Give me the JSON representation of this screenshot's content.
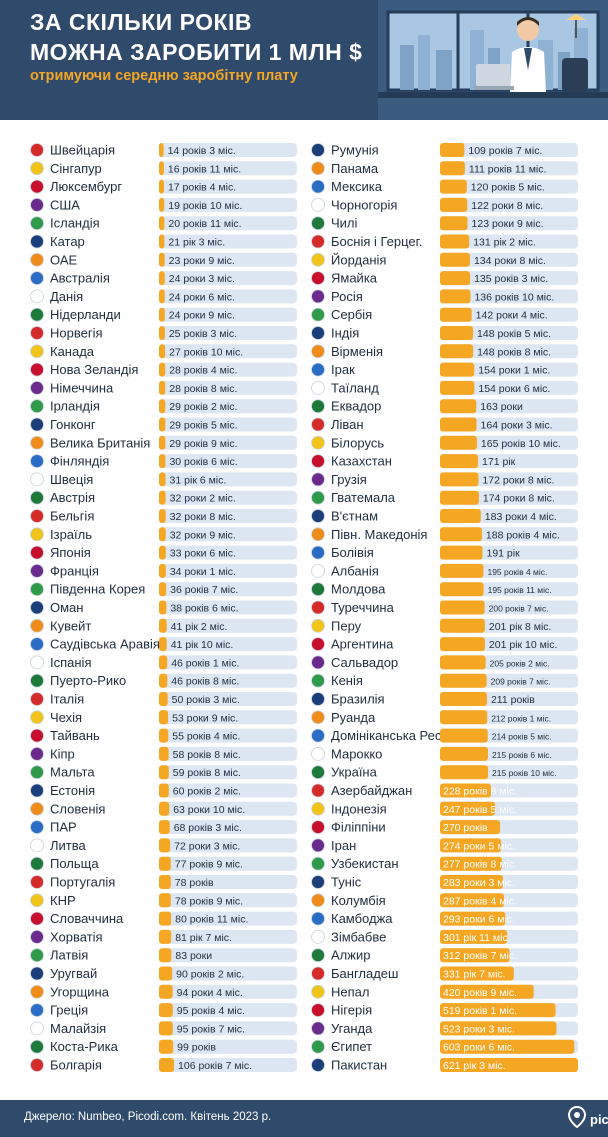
{
  "header": {
    "title_line1": "ЗА СКІЛЬКИ РОКІВ",
    "title_line2": "МОЖНА ЗАРОБИТИ 1 МЛН $",
    "subtitle": "отримуючи середню заробітну плату"
  },
  "footer": {
    "source": "Джерело: Numbeo, Picodi.com. Квітень 2023 р.",
    "logo": "picodi"
  },
  "colors": {
    "header_bg": "#2f4a6b",
    "accent": "#f5a623",
    "bar_track": "#dce7f3",
    "bar_fill": "#f5a623"
  },
  "chart_data": {
    "type": "bar",
    "title": "ЗА СКІЛЬКИ РОКІВ МОЖНА ЗАРОБИТИ 1 МЛН $",
    "subtitle": "отримуючи середню заробітну плату",
    "value_unit": "years",
    "xlim": [
      0,
      650
    ],
    "columns": [
      {
        "categories": [
          "Швейцарія",
          "Сінгапур",
          "Люксембург",
          "США",
          "Ісландія",
          "Катар",
          "ОАЕ",
          "Австралія",
          "Данія",
          "Нідерланди",
          "Норвегія",
          "Канада",
          "Нова Зеландія",
          "Німеччина",
          "Ірландія",
          "Гонконг",
          "Велика Британія",
          "Фінляндія",
          "Швеція",
          "Австрія",
          "Бельгія",
          "Ізраїль",
          "Японія",
          "Франція",
          "Південна Корея",
          "Оман",
          "Кувейт",
          "Саудівська Аравія",
          "Іспанія",
          "Пуерто-Рико",
          "Італія",
          "Чехія",
          "Тайвань",
          "Кіпр",
          "Мальта",
          "Естонія",
          "Словенія",
          "ПАР",
          "Литва",
          "Польща",
          "Португалія",
          "КНР",
          "Словаччина",
          "Хорватія",
          "Латвія",
          "Уругвай",
          "Угорщина",
          "Греція",
          "Малайзія",
          "Коста-Рика",
          "Болгарія"
        ],
        "values": [
          14.25,
          16.92,
          17.33,
          19.83,
          20.92,
          21.25,
          23.75,
          24.25,
          24.5,
          24.75,
          25.25,
          27.83,
          28.33,
          28.67,
          29.17,
          29.42,
          29.75,
          30.5,
          31.5,
          32.17,
          32.67,
          32.75,
          33.5,
          34.08,
          36.58,
          38.5,
          41.17,
          41.83,
          46.08,
          46.67,
          50.25,
          53.75,
          55.33,
          58.67,
          59.67,
          60.17,
          63.83,
          68.25,
          72.25,
          77.75,
          78.0,
          78.75,
          80.92,
          81.58,
          83.0,
          90.17,
          94.33,
          95.33,
          95.58,
          99.0,
          106.58
        ],
        "labels": [
          "14 років 3 міс.",
          "16 років 11 міс.",
          "17 років 4 міс.",
          "19 років 10 міс.",
          "20 років 11 міс.",
          "21 рік 3 міс.",
          "23 роки 9 міс.",
          "24 роки 3 міс.",
          "24 роки 6 міс.",
          "24 роки 9 міс.",
          "25 років 3 міс.",
          "27 років 10 міс.",
          "28 років 4 міс.",
          "28 років 8 міс.",
          "29 років 2 міс.",
          "29 років 5 міс.",
          "29 років 9 міс.",
          "30 років 6 міс.",
          "31 рік 6 міс.",
          "32 роки 2 міс.",
          "32 роки 8 міс.",
          "32 роки 9 міс.",
          "33 роки 6 міс.",
          "34 роки 1 міс.",
          "36 років 7 міс.",
          "38 років 6 міс.",
          "41 рік 2 міс.",
          "41 рік 10 міс.",
          "46 років 1 міс.",
          "46 років 8 міс.",
          "50 років 3 міс.",
          "53 роки 9 міс.",
          "55 років 4 міс.",
          "58 років 8 міс.",
          "59 років 8 міс.",
          "60 років 2 міс.",
          "63 роки 10 міс.",
          "68 років 3 міс.",
          "72 роки 3 міс.",
          "77 років 9 міс.",
          "78 років",
          "78 років 9 міс.",
          "80 років 11 міс.",
          "81 рік 7 міс.",
          "83 роки",
          "90 років 2 міс.",
          "94 роки 4 міс.",
          "95 років 4 міс.",
          "95 років 7 міс.",
          "99 років",
          "106 років 7 міс."
        ]
      },
      {
        "categories": [
          "Румунія",
          "Панама",
          "Мексика",
          "Чорногорія",
          "Чилі",
          "Боснія і Герцег.",
          "Йорданія",
          "Ямайка",
          "Росія",
          "Сербія",
          "Індія",
          "Вірменія",
          "Ірак",
          "Таїланд",
          "Еквадор",
          "Ліван",
          "Білорусь",
          "Казахстан",
          "Грузія",
          "Гватемала",
          "В'єтнам",
          "Півн. Македонія",
          "Болівія",
          "Албанія",
          "Молдова",
          "Туреччина",
          "Перу",
          "Аргентина",
          "Сальвадор",
          "Кенія",
          "Бразилія",
          "Руанда",
          "Домініканська Респ.",
          "Марокко",
          "Україна",
          "Азербайджан",
          "Індонезія",
          "Філіппіни",
          "Іран",
          "Узбекистан",
          "Туніс",
          "Колумбія",
          "Камбоджа",
          "Зімбабве",
          "Алжир",
          "Бангладеш",
          "Непал",
          "Нігерія",
          "Уганда",
          "Єгипет",
          "Пакистан"
        ],
        "values": [
          109.58,
          111.92,
          120.42,
          122.67,
          123.75,
          131.17,
          134.67,
          135.25,
          136.83,
          142.33,
          148.42,
          148.67,
          154.08,
          154.5,
          163.0,
          164.25,
          165.83,
          171.0,
          172.67,
          174.67,
          183.33,
          188.33,
          191.0,
          195.33,
          195.92,
          200.58,
          201.67,
          201.83,
          205.17,
          209.58,
          211.0,
          212.08,
          214.42,
          215.5,
          215.83,
          228.67,
          247.42,
          270.0,
          274.42,
          277.67,
          283.25,
          287.33,
          293.5,
          301.92,
          312.58,
          331.58,
          420.75,
          519.08,
          523.25,
          603.5,
          621.25
        ],
        "labels": [
          "109 років 7 міс.",
          "111 років 11 міс.",
          "120 років 5 міс.",
          "122 роки 8 міс.",
          "123 роки 9 міс.",
          "131 рік 2 міс.",
          "134 роки 8 міс.",
          "135 років 3 міс.",
          "136 років 10 міс.",
          "142 роки 4 міс.",
          "148 років 5 міс.",
          "148 років 8 міс.",
          "154 роки 1 міс.",
          "154 роки 6 міс.",
          "163 роки",
          "164 роки 3 міс.",
          "165 років 10 міс.",
          "171 рік",
          "172 роки 8 міс.",
          "174 роки 8 міс.",
          "183 роки 4 міс.",
          "188 років 4 міс.",
          "191 рік",
          "195 років 4 міс.",
          "195 років 11 міс.",
          "200 років 7 міс.",
          "201 рік 8 міс.",
          "201 рік 10 міс.",
          "205 років 2 міс.",
          "209 років 7 міс.",
          "211 років",
          "212 років 1 міс.",
          "214 років 5 міс.",
          "215 років 6 міс.",
          "215 років 10 міс.",
          "228 років 8 міс.",
          "247 років 5 міс.",
          "270 років",
          "274 роки 5 міс.",
          "277 років 8 міс.",
          "283 роки 3 міс.",
          "287 років 4 міс.",
          "293 роки 6 міс.",
          "301 рік 11 міс.",
          "312 років 7 міс.",
          "331 рік 7 міс.",
          "420 років 9 міс.",
          "519 років 1 міс.",
          "523 роки 3 міс.",
          "603 роки 6 міс.",
          "621 рік 3 міс."
        ]
      }
    ]
  }
}
